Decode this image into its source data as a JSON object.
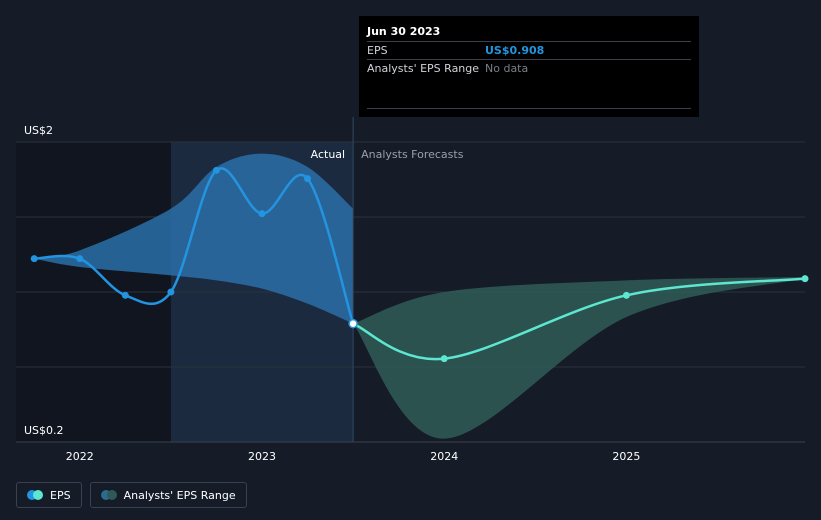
{
  "tooltip": {
    "date": "Jun 30 2023",
    "rows": [
      {
        "label": "EPS",
        "value": "US$0.908"
      },
      {
        "label": "Analysts' EPS Range",
        "value": "No data"
      }
    ]
  },
  "labels": {
    "actual": "Actual",
    "forecast": "Analysts Forecasts"
  },
  "legend": [
    {
      "label": "EPS",
      "color_a": "#2394df",
      "color_b": "#5de6d0"
    },
    {
      "label": "Analysts' EPS Range",
      "color_a": "#2b6b8c",
      "color_b": "#2f5957"
    }
  ],
  "colors": {
    "background": "#151b27",
    "actual_line": "#2394df",
    "forecast_line": "#5de6d0",
    "actual_band": "#2a6ea8",
    "forecast_band": "#2f5c56",
    "shaded_region": "#1b2a3e",
    "past_region": "#10151f"
  },
  "chart_data": {
    "type": "line",
    "title": "",
    "xlabel": "",
    "ylabel": "",
    "y_tick_labels": [
      "US$2",
      "US$0.2"
    ],
    "ylim": [
      0.2,
      2.0
    ],
    "x_tick_labels": [
      "2022",
      "2023",
      "2024",
      "2025"
    ],
    "xlim": [
      2021.65,
      2025.98
    ],
    "grid": true,
    "series": [
      {
        "name": "EPS",
        "kind": "actual",
        "points": [
          {
            "x": 2021.75,
            "y": 1.3
          },
          {
            "x": 2022.0,
            "y": 1.3
          },
          {
            "x": 2022.25,
            "y": 1.08
          },
          {
            "x": 2022.5,
            "y": 1.1
          },
          {
            "x": 2022.75,
            "y": 1.83
          },
          {
            "x": 2023.0,
            "y": 1.57
          },
          {
            "x": 2023.25,
            "y": 1.78
          },
          {
            "x": 2023.5,
            "y": 0.91
          }
        ]
      },
      {
        "name": "EPS",
        "kind": "forecast",
        "points": [
          {
            "x": 2023.5,
            "y": 0.91
          },
          {
            "x": 2024.0,
            "y": 0.7
          },
          {
            "x": 2025.0,
            "y": 1.08
          },
          {
            "x": 2025.98,
            "y": 1.18
          }
        ]
      }
    ],
    "actual_range": {
      "x": [
        2021.75,
        2022.0,
        2022.5,
        2022.75,
        2023.0,
        2023.25,
        2023.5
      ],
      "low": [
        1.3,
        1.25,
        1.2,
        1.17,
        1.12,
        1.03,
        0.91
      ],
      "high": [
        1.3,
        1.35,
        1.6,
        1.85,
        1.93,
        1.85,
        1.6
      ]
    },
    "forecast_range": {
      "x": [
        2023.5,
        2024.0,
        2025.0,
        2025.98
      ],
      "low": [
        0.91,
        0.22,
        0.95,
        1.18
      ],
      "high": [
        0.91,
        1.1,
        1.17,
        1.19
      ]
    },
    "shaded_x_range": [
      2022.5,
      2023.5
    ],
    "divider_x": 2023.5
  }
}
